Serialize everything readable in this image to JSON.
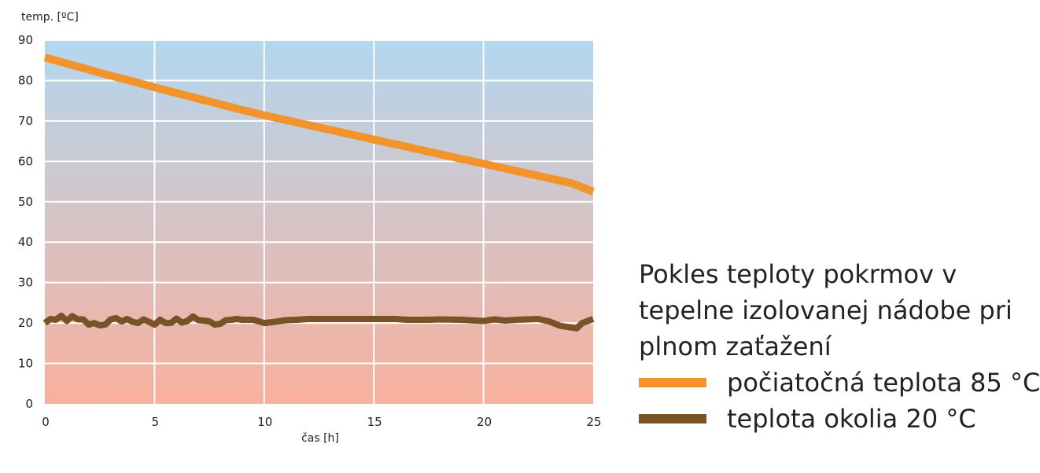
{
  "chart_data": {
    "type": "line",
    "title": "Pokles teploty pokrmov v tepelne izolovanej nádobe pri plnom zaťažení",
    "xlabel": "čas [h]",
    "ylabel": "temp. [ºC]",
    "xlim": [
      0,
      25
    ],
    "ylim": [
      0,
      90
    ],
    "x_ticks": [
      "0",
      "5",
      "10",
      "15",
      "20",
      "25"
    ],
    "y_ticks": [
      "0",
      "10",
      "20",
      "30",
      "40",
      "50",
      "60",
      "70",
      "80",
      "90"
    ],
    "grid": true,
    "background_gradient": [
      "#b3d7ef",
      "#f8b09c"
    ],
    "legend_position": "right",
    "series": [
      {
        "name": "počiatočná teplota 85 °C",
        "color": "#f2942b",
        "x": [
          0,
          1,
          2,
          3,
          4,
          5,
          6,
          7,
          8,
          9,
          10,
          11,
          12,
          13,
          14,
          15,
          16,
          17,
          18,
          19,
          20,
          21,
          22,
          23,
          24,
          25
        ],
        "y": [
          85.7,
          84.2,
          82.7,
          81.2,
          79.8,
          78.3,
          76.9,
          75.5,
          74.1,
          72.7,
          71.4,
          70.2,
          69.0,
          67.8,
          66.6,
          65.4,
          64.2,
          63.0,
          61.8,
          60.6,
          59.4,
          58.2,
          57.0,
          55.8,
          54.6,
          52.5
        ]
      },
      {
        "name": "teplota okolia 20 °C",
        "color": "#7a5228",
        "x": [
          0,
          0.25,
          0.5,
          0.75,
          1,
          1.25,
          1.5,
          1.75,
          2,
          2.25,
          2.5,
          2.75,
          3,
          3.25,
          3.5,
          3.75,
          4,
          4.25,
          4.5,
          4.75,
          5,
          5.25,
          5.5,
          5.75,
          6,
          6.25,
          6.5,
          6.75,
          7,
          7.25,
          7.5,
          7.75,
          8,
          8.25,
          8.5,
          8.75,
          9,
          9.5,
          10,
          10.5,
          11,
          11.5,
          12,
          12.5,
          13,
          14,
          15,
          16,
          16.5,
          17,
          17.5,
          18,
          19,
          20,
          20.5,
          21,
          21.5,
          22,
          22.5,
          23,
          23.5,
          24,
          24.25,
          24.5,
          25
        ],
        "y": [
          20.0,
          21.0,
          20.8,
          21.8,
          20.5,
          21.7,
          20.9,
          20.9,
          19.6,
          20.0,
          19.4,
          19.6,
          20.9,
          21.2,
          20.4,
          21.0,
          20.3,
          20.0,
          20.9,
          20.3,
          19.6,
          20.8,
          20.0,
          20.0,
          21.1,
          20.1,
          20.5,
          21.6,
          20.7,
          20.6,
          20.4,
          19.6,
          19.8,
          20.7,
          20.8,
          21.0,
          20.8,
          20.8,
          20.0,
          20.3,
          20.7,
          20.8,
          21.0,
          21.0,
          21.0,
          21.0,
          21.0,
          21.0,
          20.8,
          20.8,
          20.8,
          20.9,
          20.8,
          20.5,
          20.9,
          20.6,
          20.8,
          20.9,
          21.0,
          20.4,
          19.3,
          18.9,
          18.7,
          20.0,
          21.0
        ]
      }
    ]
  }
}
